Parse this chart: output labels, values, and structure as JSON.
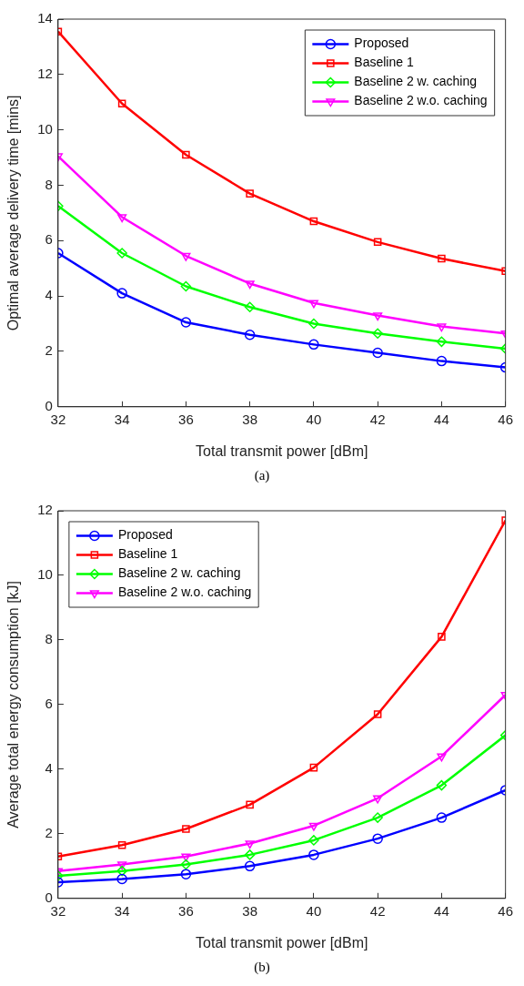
{
  "chart_data": [
    {
      "type": "line",
      "xlabel": "Total transmit power [dBm]",
      "ylabel": "Optimal average delivery time [mins]",
      "annotations": [
        "(a)"
      ],
      "x": [
        32,
        34,
        36,
        38,
        40,
        42,
        44,
        46
      ],
      "xlim": [
        32,
        46
      ],
      "xticks": [
        32,
        34,
        36,
        38,
        40,
        42,
        44,
        46
      ],
      "ylim": [
        0,
        14
      ],
      "yticks": [
        0,
        2,
        4,
        6,
        8,
        10,
        12,
        14
      ],
      "grid": false,
      "legend": "top right",
      "series": [
        {
          "name": "Proposed",
          "color": "#0000ff",
          "marker": "circle",
          "values": [
            5.55,
            4.1,
            3.05,
            2.6,
            2.25,
            1.95,
            1.65,
            1.42
          ]
        },
        {
          "name": "Baseline 1",
          "color": "#ff0000",
          "marker": "square",
          "values": [
            13.55,
            10.95,
            9.1,
            7.7,
            6.7,
            5.95,
            5.35,
            4.9
          ]
        },
        {
          "name": "Baseline 2 w. caching",
          "color": "#00ff00",
          "marker": "diamond",
          "values": [
            7.25,
            5.55,
            4.35,
            3.6,
            3.0,
            2.65,
            2.35,
            2.1
          ]
        },
        {
          "name": "Baseline 2 w.o. caching",
          "color": "#ff00ff",
          "marker": "triangle",
          "values": [
            9.05,
            6.85,
            5.45,
            4.45,
            3.75,
            3.3,
            2.9,
            2.65
          ]
        }
      ]
    },
    {
      "type": "line",
      "xlabel": "Total transmit power [dBm]",
      "ylabel": "Average total energy consumption [kJ]",
      "annotations": [
        "(b)"
      ],
      "x": [
        32,
        34,
        36,
        38,
        40,
        42,
        44,
        46
      ],
      "xlim": [
        32,
        46
      ],
      "xticks": [
        32,
        34,
        36,
        38,
        40,
        42,
        44,
        46
      ],
      "ylim": [
        0,
        12
      ],
      "yticks": [
        0,
        2,
        4,
        6,
        8,
        10,
        12
      ],
      "grid": false,
      "legend": "top left",
      "series": [
        {
          "name": "Proposed",
          "color": "#0000ff",
          "marker": "circle",
          "values": [
            0.5,
            0.6,
            0.75,
            1.0,
            1.35,
            1.85,
            2.5,
            3.35
          ]
        },
        {
          "name": "Baseline 1",
          "color": "#ff0000",
          "marker": "square",
          "values": [
            1.3,
            1.65,
            2.15,
            2.9,
            4.05,
            5.7,
            8.1,
            11.7
          ]
        },
        {
          "name": "Baseline 2 w. caching",
          "color": "#00ff00",
          "marker": "diamond",
          "values": [
            0.7,
            0.85,
            1.05,
            1.35,
            1.8,
            2.5,
            3.5,
            5.05
          ]
        },
        {
          "name": "Baseline 2 w.o. caching",
          "color": "#ff00ff",
          "marker": "triangle",
          "values": [
            0.85,
            1.05,
            1.3,
            1.7,
            2.25,
            3.1,
            4.4,
            6.3
          ]
        }
      ]
    }
  ]
}
